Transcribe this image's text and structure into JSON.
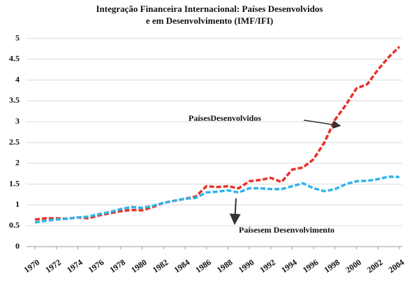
{
  "chart_data": {
    "type": "line",
    "title": [
      "Integração Financeira Internacional: Países Desenvolvidos",
      "e em Desenvolvimento (IMF/IFI)"
    ],
    "x": [
      1970,
      1971,
      1972,
      1973,
      1974,
      1975,
      1976,
      1977,
      1978,
      1979,
      1980,
      1981,
      1982,
      1983,
      1984,
      1985,
      1986,
      1987,
      1988,
      1989,
      1990,
      1991,
      1992,
      1993,
      1994,
      1995,
      1996,
      1997,
      1998,
      1999,
      2000,
      2001,
      2002,
      2003,
      2004
    ],
    "series": [
      {
        "name": "PaísesDesenvolvidos",
        "color": "#e8302a",
        "values": [
          0.65,
          0.68,
          0.68,
          0.67,
          0.7,
          0.68,
          0.75,
          0.8,
          0.85,
          0.88,
          0.87,
          0.95,
          1.05,
          1.1,
          1.15,
          1.2,
          1.45,
          1.43,
          1.45,
          1.4,
          1.57,
          1.6,
          1.65,
          1.55,
          1.85,
          1.9,
          2.1,
          2.5,
          3.05,
          3.4,
          3.8,
          3.9,
          4.25,
          4.55,
          4.8
        ]
      },
      {
        "name": "Paísesem Desenvolvimento",
        "color": "#2fb5ea",
        "values": [
          0.58,
          0.62,
          0.65,
          0.67,
          0.7,
          0.72,
          0.78,
          0.83,
          0.9,
          0.95,
          0.93,
          0.98,
          1.05,
          1.1,
          1.15,
          1.17,
          1.3,
          1.32,
          1.35,
          1.3,
          1.4,
          1.4,
          1.38,
          1.38,
          1.45,
          1.52,
          1.4,
          1.33,
          1.38,
          1.5,
          1.57,
          1.58,
          1.62,
          1.68,
          1.67
        ]
      }
    ],
    "xlim": [
      1970,
      2004
    ],
    "xticks": [
      1970,
      1972,
      1974,
      1976,
      1978,
      1980,
      1982,
      1984,
      1986,
      1988,
      1990,
      1992,
      1994,
      1996,
      1998,
      2000,
      2002,
      2004
    ],
    "ylim": [
      0,
      5
    ],
    "yticks": [
      0,
      0.5,
      1,
      1.5,
      2,
      2.5,
      3,
      3.5,
      4,
      4.5,
      5
    ],
    "grid": true
  }
}
